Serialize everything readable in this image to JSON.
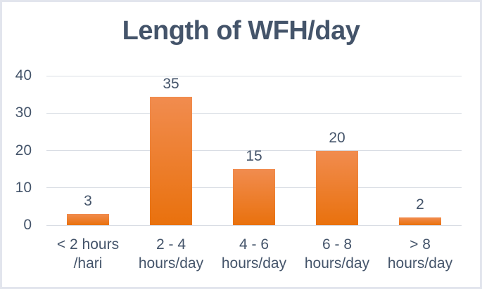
{
  "chart": {
    "colors": {
      "background": "#FFFFFF",
      "frame_border": "#E2E5ED",
      "gridline": "#D9DDE4",
      "text": "#44546A",
      "bar_gradient_top": "#F18C4F",
      "bar_gradient_bottom": "#E9710D"
    }
  },
  "chart_data": {
    "type": "bar",
    "title": "Length of WFH/day",
    "categories": [
      "< 2 hours\n/hari",
      "2 - 4\nhours/day",
      "4 - 6\nhours/day",
      "6 - 8\nhours/day",
      "> 8\nhours/day"
    ],
    "values": [
      3,
      35,
      15,
      20,
      2
    ],
    "data_labels": [
      "3",
      "35",
      "15",
      "20",
      "2"
    ],
    "xlabel": "",
    "ylabel": "",
    "ylim": [
      0,
      40
    ],
    "yticks": [
      0,
      10,
      20,
      30,
      40
    ],
    "grid": true,
    "legend": false
  }
}
